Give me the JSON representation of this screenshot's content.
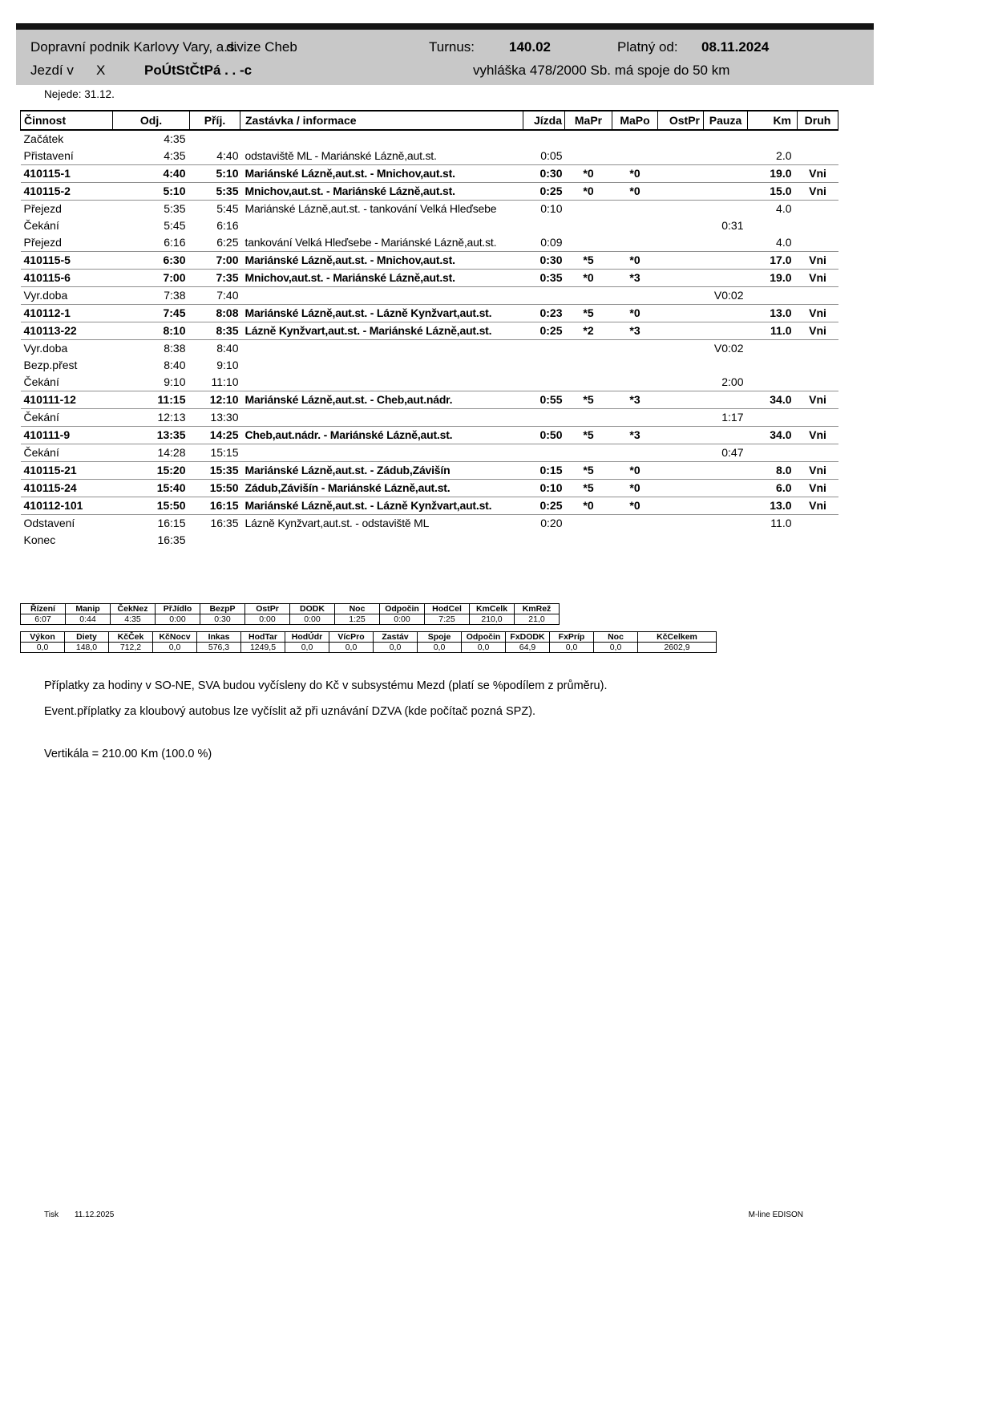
{
  "header": {
    "company": "Dopravní podnik Karlovy Vary, a.s.",
    "division": "divize Cheb",
    "turnus_label": "Turnus:",
    "turnus_value": "140.02",
    "valid_from_label": "Platný od:",
    "valid_from_value": "08.11.2024",
    "runs_on_label": "Jezdí v",
    "runs_on_code": "X",
    "runs_on_days": "PoÚtStČtPá . . -c",
    "regulation": "vyhláška 478/2000 Sb. má spoje do 50 km",
    "not_running": "Nejede: 31.12."
  },
  "schedule": {
    "columns": [
      "Činnost",
      "Odj.",
      "Příj.",
      "Zastávka / informace",
      "Jízda",
      "MaPr",
      "MaPo",
      "OstPr",
      "Pauza",
      "Km",
      "Druh"
    ],
    "rows": [
      {
        "activity": "Začátek",
        "dep": "4:35",
        "arr": "",
        "info": "",
        "ride": "",
        "mapr": "",
        "mapo": "",
        "ostpr": "",
        "pauza": "",
        "km": "",
        "druh": "",
        "style": "plain"
      },
      {
        "activity": "Přistavení",
        "dep": "4:35",
        "arr": "4:40",
        "info": "odstaviště ML - Mariánské Lázně,aut.st.",
        "ride": "0:05",
        "mapr": "",
        "mapo": "",
        "ostpr": "",
        "pauza": "",
        "km": "2.0",
        "druh": "",
        "style": "plain"
      },
      {
        "activity": "410115-1",
        "dep": "4:40",
        "arr": "5:10",
        "info": "Mariánské Lázně,aut.st. - Mnichov,aut.st.",
        "ride": "0:30",
        "mapr": "*0",
        "mapo": "*0",
        "ostpr": "",
        "pauza": "",
        "km": "19.0",
        "druh": "Vni",
        "style": "trip"
      },
      {
        "activity": "410115-2",
        "dep": "5:10",
        "arr": "5:35",
        "info": "Mnichov,aut.st. - Mariánské Lázně,aut.st.",
        "ride": "0:25",
        "mapr": "*0",
        "mapo": "*0",
        "ostpr": "",
        "pauza": "",
        "km": "15.0",
        "druh": "Vni",
        "style": "trip"
      },
      {
        "activity": "Přejezd",
        "dep": "5:35",
        "arr": "5:45",
        "info": "Mariánské Lázně,aut.st. - tankování Velká Hleďsebe",
        "ride": "0:10",
        "mapr": "",
        "mapo": "",
        "ostpr": "",
        "pauza": "",
        "km": "4.0",
        "druh": "",
        "style": "plain"
      },
      {
        "activity": "Čekání",
        "dep": "5:45",
        "arr": "6:16",
        "info": "",
        "ride": "",
        "mapr": "",
        "mapo": "",
        "ostpr": "",
        "pauza": "0:31",
        "km": "",
        "druh": "",
        "style": "plain"
      },
      {
        "activity": "Přejezd",
        "dep": "6:16",
        "arr": "6:25",
        "info": "tankování Velká Hleďsebe - Mariánské Lázně,aut.st.",
        "ride": "0:09",
        "mapr": "",
        "mapo": "",
        "ostpr": "",
        "pauza": "",
        "km": "4.0",
        "druh": "",
        "style": "plain"
      },
      {
        "activity": "410115-5",
        "dep": "6:30",
        "arr": "7:00",
        "info": "Mariánské Lázně,aut.st. - Mnichov,aut.st.",
        "ride": "0:30",
        "mapr": "*5",
        "mapo": "*0",
        "ostpr": "",
        "pauza": "",
        "km": "17.0",
        "druh": "Vni",
        "style": "trip"
      },
      {
        "activity": "410115-6",
        "dep": "7:00",
        "arr": "7:35",
        "info": "Mnichov,aut.st. - Mariánské Lázně,aut.st.",
        "ride": "0:35",
        "mapr": "*0",
        "mapo": "*3",
        "ostpr": "",
        "pauza": "",
        "km": "19.0",
        "druh": "Vni",
        "style": "trip"
      },
      {
        "activity": "Vyr.doba",
        "dep": "7:38",
        "arr": "7:40",
        "info": "",
        "ride": "",
        "mapr": "",
        "mapo": "",
        "ostpr": "",
        "pauza": "V0:02",
        "km": "",
        "druh": "",
        "style": "plain"
      },
      {
        "activity": "410112-1",
        "dep": "7:45",
        "arr": "8:08",
        "info": "Mariánské Lázně,aut.st. - Lázně Kynžvart,aut.st.",
        "ride": "0:23",
        "mapr": "*5",
        "mapo": "*0",
        "ostpr": "",
        "pauza": "",
        "km": "13.0",
        "druh": "Vni",
        "style": "trip"
      },
      {
        "activity": "410113-22",
        "dep": "8:10",
        "arr": "8:35",
        "info": "Lázně Kynžvart,aut.st. - Mariánské Lázně,aut.st.",
        "ride": "0:25",
        "mapr": "*2",
        "mapo": "*3",
        "ostpr": "",
        "pauza": "",
        "km": "11.0",
        "druh": "Vni",
        "style": "trip"
      },
      {
        "activity": "Vyr.doba",
        "dep": "8:38",
        "arr": "8:40",
        "info": "",
        "ride": "",
        "mapr": "",
        "mapo": "",
        "ostpr": "",
        "pauza": "V0:02",
        "km": "",
        "druh": "",
        "style": "plain"
      },
      {
        "activity": "Bezp.přest",
        "dep": "8:40",
        "arr": "9:10",
        "info": "",
        "ride": "",
        "mapr": "",
        "mapo": "",
        "ostpr": "",
        "pauza": "",
        "km": "",
        "druh": "",
        "style": "plain"
      },
      {
        "activity": "Čekání",
        "dep": "9:10",
        "arr": "11:10",
        "info": "",
        "ride": "",
        "mapr": "",
        "mapo": "",
        "ostpr": "",
        "pauza": "2:00",
        "km": "",
        "druh": "",
        "style": "plain"
      },
      {
        "activity": "410111-12",
        "dep": "11:15",
        "arr": "12:10",
        "info": "Mariánské Lázně,aut.st. - Cheb,aut.nádr.",
        "ride": "0:55",
        "mapr": "*5",
        "mapo": "*3",
        "ostpr": "",
        "pauza": "",
        "km": "34.0",
        "druh": "Vni",
        "style": "trip"
      },
      {
        "activity": "Čekání",
        "dep": "12:13",
        "arr": "13:30",
        "info": "",
        "ride": "",
        "mapr": "",
        "mapo": "",
        "ostpr": "",
        "pauza": "1:17",
        "km": "",
        "druh": "",
        "style": "plain"
      },
      {
        "activity": "410111-9",
        "dep": "13:35",
        "arr": "14:25",
        "info": "Cheb,aut.nádr. - Mariánské Lázně,aut.st.",
        "ride": "0:50",
        "mapr": "*5",
        "mapo": "*3",
        "ostpr": "",
        "pauza": "",
        "km": "34.0",
        "druh": "Vni",
        "style": "trip"
      },
      {
        "activity": "Čekání",
        "dep": "14:28",
        "arr": "15:15",
        "info": "",
        "ride": "",
        "mapr": "",
        "mapo": "",
        "ostpr": "",
        "pauza": "0:47",
        "km": "",
        "druh": "",
        "style": "plain"
      },
      {
        "activity": "410115-21",
        "dep": "15:20",
        "arr": "15:35",
        "info": "Mariánské Lázně,aut.st. - Zádub,Závišín",
        "ride": "0:15",
        "mapr": "*5",
        "mapo": "*0",
        "ostpr": "",
        "pauza": "",
        "km": "8.0",
        "druh": "Vni",
        "style": "trip"
      },
      {
        "activity": "410115-24",
        "dep": "15:40",
        "arr": "15:50",
        "info": "Zádub,Závišín - Mariánské Lázně,aut.st.",
        "ride": "0:10",
        "mapr": "*5",
        "mapo": "*0",
        "ostpr": "",
        "pauza": "",
        "km": "6.0",
        "druh": "Vni",
        "style": "trip"
      },
      {
        "activity": "410112-101",
        "dep": "15:50",
        "arr": "16:15",
        "info": "Mariánské Lázně,aut.st. - Lázně Kynžvart,aut.st.",
        "ride": "0:25",
        "mapr": "*0",
        "mapo": "*0",
        "ostpr": "",
        "pauza": "",
        "km": "13.0",
        "druh": "Vni",
        "style": "trip"
      },
      {
        "activity": "Odstavení",
        "dep": "16:15",
        "arr": "16:35",
        "info": "Lázně Kynžvart,aut.st. - odstaviště ML",
        "ride": "0:20",
        "mapr": "",
        "mapo": "",
        "ostpr": "",
        "pauza": "",
        "km": "11.0",
        "druh": "",
        "style": "plain"
      },
      {
        "activity": "Konec",
        "dep": "16:35",
        "arr": "",
        "info": "",
        "ride": "",
        "mapr": "",
        "mapo": "",
        "ostpr": "",
        "pauza": "",
        "km": "",
        "druh": "",
        "style": "plain"
      }
    ]
  },
  "summary1": {
    "headers": [
      "Řízení",
      "Manip",
      "ČekNez",
      "PřJídlo",
      "BezpP",
      "OstPr",
      "DODK",
      "Noc",
      "Odpočin",
      "HodCel",
      "KmCelk",
      "KmRež"
    ],
    "values": [
      "6:07",
      "0:44",
      "4:35",
      "0:00",
      "0:30",
      "0:00",
      "0:00",
      "1:25",
      "0:00",
      "7:25",
      "210,0",
      "21,0"
    ]
  },
  "summary2": {
    "headers": [
      "Výkon",
      "Diety",
      "KčČek",
      "KčNocv",
      "Inkas",
      "HodTar",
      "HodÚdr",
      "VícPro",
      "Zastáv",
      "Spoje",
      "Odpočin",
      "FxDODK",
      "FxPríp",
      "Noc",
      "KčCelkem"
    ],
    "values": [
      "0,0",
      "148,0",
      "712,2",
      "0,0",
      "576,3",
      "1249,5",
      "0,0",
      "0,0",
      "0,0",
      "0,0",
      "0,0",
      "64,9",
      "0,0",
      "0,0",
      "2602,9"
    ]
  },
  "notes": [
    "Příplatky za hodiny v SO-NE, SVA budou vyčísleny do Kč v subsystému Mezd (platí se %podílem z průměru).",
    "Event.příplatky za kloubový autobus lze vyčíslit až při uznávání DZVA (kde počítač pozná SPZ)."
  ],
  "vertical_total": "Vertikála = 210.00 Km (100.0 %)",
  "footer": {
    "print_label": "Tisk",
    "print_date": "11.12.2025",
    "system_name": "M-line EDISON"
  }
}
